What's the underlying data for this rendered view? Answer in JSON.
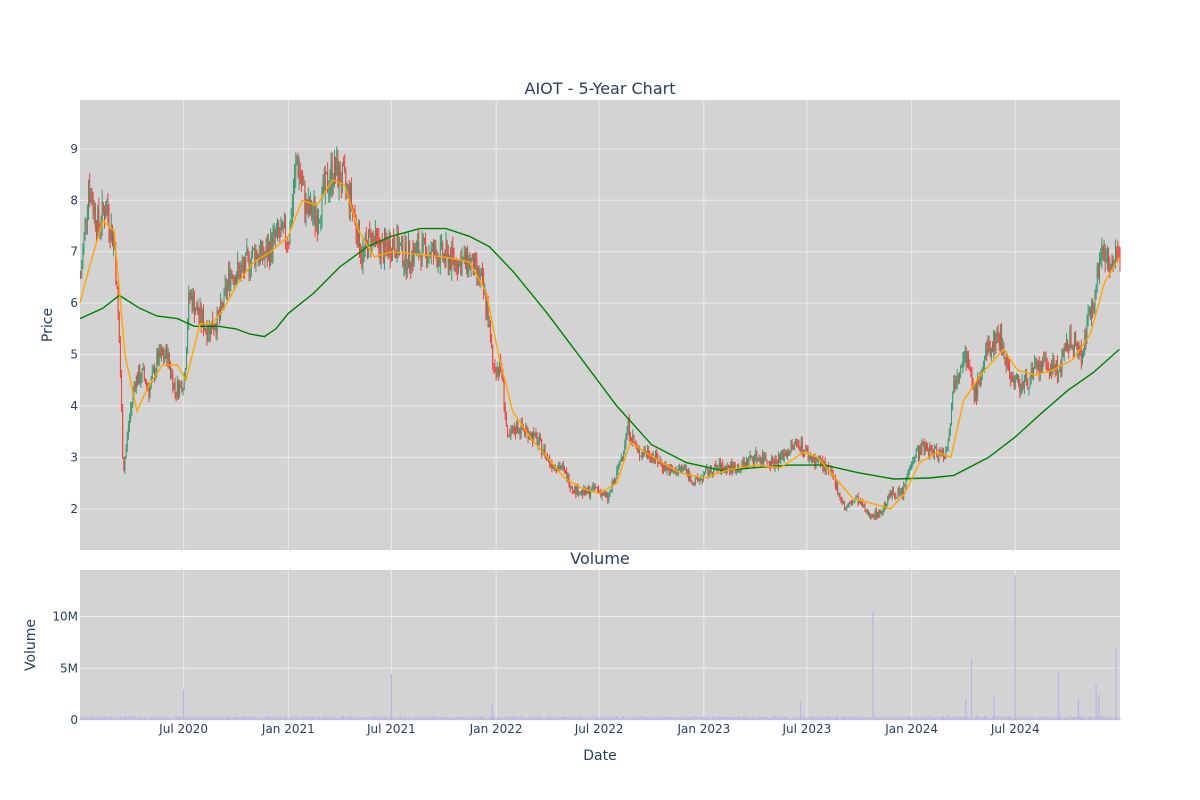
{
  "chart_data": {
    "type": "candlestick",
    "title": "AIOT - 5-Year Chart",
    "colors": {
      "plot_bg": "#d3d3d3",
      "grid": "#ebebeb",
      "increasing": "#3d9970",
      "decreasing": "#e8453c",
      "ma_short": "#ffa500",
      "ma_long": "#008000",
      "volume": "#b9b4e6"
    },
    "x_range": [
      "2020-01-01",
      "2025-01-01"
    ],
    "x_ticks": [
      {
        "date": "2020-07-01",
        "label": "Jul 2020"
      },
      {
        "date": "2021-01-01",
        "label": "Jan 2021"
      },
      {
        "date": "2021-07-01",
        "label": "Jul 2021"
      },
      {
        "date": "2022-01-01",
        "label": "Jan 2022"
      },
      {
        "date": "2022-07-01",
        "label": "Jul 2022"
      },
      {
        "date": "2023-01-01",
        "label": "Jan 2023"
      },
      {
        "date": "2023-07-01",
        "label": "Jul 2023"
      },
      {
        "date": "2024-01-01",
        "label": "Jan 2024"
      },
      {
        "date": "2024-07-01",
        "label": "Jul 2024"
      }
    ],
    "price_panel": {
      "ylabel": "Price",
      "ylim": [
        1.2,
        9.95
      ],
      "yticks": [
        2,
        3,
        4,
        5,
        6,
        7,
        8,
        9
      ],
      "closes": [
        {
          "d": "2020-01-01",
          "v": 6.5
        },
        {
          "d": "2020-01-15",
          "v": 8.3
        },
        {
          "d": "2020-02-01",
          "v": 7.5
        },
        {
          "d": "2020-02-15",
          "v": 7.9
        },
        {
          "d": "2020-03-01",
          "v": 7.1
        },
        {
          "d": "2020-03-10",
          "v": 5.0
        },
        {
          "d": "2020-03-16",
          "v": 2.7
        },
        {
          "d": "2020-03-25",
          "v": 3.6
        },
        {
          "d": "2020-04-05",
          "v": 4.5
        },
        {
          "d": "2020-04-20",
          "v": 4.6
        },
        {
          "d": "2020-05-01",
          "v": 4.3
        },
        {
          "d": "2020-05-15",
          "v": 4.9
        },
        {
          "d": "2020-06-01",
          "v": 5.0
        },
        {
          "d": "2020-06-15",
          "v": 4.3
        },
        {
          "d": "2020-07-01",
          "v": 4.5
        },
        {
          "d": "2020-07-10",
          "v": 6.2
        },
        {
          "d": "2020-07-25",
          "v": 5.8
        },
        {
          "d": "2020-08-10",
          "v": 5.5
        },
        {
          "d": "2020-09-01",
          "v": 5.7
        },
        {
          "d": "2020-09-20",
          "v": 6.6
        },
        {
          "d": "2020-10-10",
          "v": 6.6
        },
        {
          "d": "2020-11-01",
          "v": 7.0
        },
        {
          "d": "2020-11-20",
          "v": 6.9
        },
        {
          "d": "2020-12-10",
          "v": 7.3
        },
        {
          "d": "2021-01-01",
          "v": 7.3
        },
        {
          "d": "2021-01-15",
          "v": 8.8
        },
        {
          "d": "2021-02-01",
          "v": 7.8
        },
        {
          "d": "2021-02-20",
          "v": 7.7
        },
        {
          "d": "2021-03-05",
          "v": 8.2
        },
        {
          "d": "2021-03-20",
          "v": 8.6
        },
        {
          "d": "2021-04-05",
          "v": 8.4
        },
        {
          "d": "2021-04-20",
          "v": 8.0
        },
        {
          "d": "2021-05-10",
          "v": 6.9
        },
        {
          "d": "2021-05-25",
          "v": 7.3
        },
        {
          "d": "2021-06-15",
          "v": 7.0
        },
        {
          "d": "2021-07-05",
          "v": 7.2
        },
        {
          "d": "2021-07-25",
          "v": 6.9
        },
        {
          "d": "2021-08-15",
          "v": 7.0
        },
        {
          "d": "2021-09-05",
          "v": 7.0
        },
        {
          "d": "2021-10-01",
          "v": 6.9
        },
        {
          "d": "2021-10-25",
          "v": 6.8
        },
        {
          "d": "2021-11-15",
          "v": 6.8
        },
        {
          "d": "2021-12-05",
          "v": 6.4
        },
        {
          "d": "2021-12-15",
          "v": 5.9
        },
        {
          "d": "2021-12-25",
          "v": 4.8
        },
        {
          "d": "2022-01-10",
          "v": 4.7
        },
        {
          "d": "2022-01-20",
          "v": 3.3
        },
        {
          "d": "2022-02-05",
          "v": 3.6
        },
        {
          "d": "2022-02-25",
          "v": 3.5
        },
        {
          "d": "2022-03-15",
          "v": 3.3
        },
        {
          "d": "2022-04-05",
          "v": 2.9
        },
        {
          "d": "2022-04-25",
          "v": 2.8
        },
        {
          "d": "2022-05-15",
          "v": 2.4
        },
        {
          "d": "2022-06-05",
          "v": 2.3
        },
        {
          "d": "2022-06-25",
          "v": 2.4
        },
        {
          "d": "2022-07-15",
          "v": 2.2
        },
        {
          "d": "2022-08-01",
          "v": 2.7
        },
        {
          "d": "2022-08-20",
          "v": 3.6
        },
        {
          "d": "2022-09-05",
          "v": 3.1
        },
        {
          "d": "2022-09-25",
          "v": 3.1
        },
        {
          "d": "2022-10-15",
          "v": 2.9
        },
        {
          "d": "2022-11-05",
          "v": 2.7
        },
        {
          "d": "2022-11-25",
          "v": 2.8
        },
        {
          "d": "2022-12-15",
          "v": 2.5
        },
        {
          "d": "2023-01-05",
          "v": 2.7
        },
        {
          "d": "2023-01-25",
          "v": 2.8
        },
        {
          "d": "2023-02-15",
          "v": 2.8
        },
        {
          "d": "2023-03-05",
          "v": 2.8
        },
        {
          "d": "2023-03-25",
          "v": 3.0
        },
        {
          "d": "2023-04-15",
          "v": 3.0
        },
        {
          "d": "2023-05-05",
          "v": 2.9
        },
        {
          "d": "2023-05-25",
          "v": 3.1
        },
        {
          "d": "2023-06-15",
          "v": 3.3
        },
        {
          "d": "2023-07-05",
          "v": 3.0
        },
        {
          "d": "2023-07-25",
          "v": 2.9
        },
        {
          "d": "2023-08-15",
          "v": 2.6
        },
        {
          "d": "2023-09-05",
          "v": 2.0
        },
        {
          "d": "2023-09-25",
          "v": 2.2
        },
        {
          "d": "2023-10-15",
          "v": 1.9
        },
        {
          "d": "2023-11-05",
          "v": 1.9
        },
        {
          "d": "2023-11-25",
          "v": 2.3
        },
        {
          "d": "2023-12-15",
          "v": 2.3
        },
        {
          "d": "2024-01-01",
          "v": 3.0
        },
        {
          "d": "2024-01-20",
          "v": 3.2
        },
        {
          "d": "2024-02-10",
          "v": 3.1
        },
        {
          "d": "2024-03-01",
          "v": 3.1
        },
        {
          "d": "2024-03-15",
          "v": 4.5
        },
        {
          "d": "2024-04-01",
          "v": 5.1
        },
        {
          "d": "2024-04-20",
          "v": 4.2
        },
        {
          "d": "2024-05-10",
          "v": 5.0
        },
        {
          "d": "2024-06-01",
          "v": 5.4
        },
        {
          "d": "2024-06-25",
          "v": 4.5
        },
        {
          "d": "2024-07-15",
          "v": 4.4
        },
        {
          "d": "2024-08-05",
          "v": 4.7
        },
        {
          "d": "2024-08-25",
          "v": 4.8
        },
        {
          "d": "2024-09-15",
          "v": 4.7
        },
        {
          "d": "2024-10-05",
          "v": 5.3
        },
        {
          "d": "2024-10-25",
          "v": 5.0
        },
        {
          "d": "2024-11-15",
          "v": 6.2
        },
        {
          "d": "2024-12-01",
          "v": 7.1
        },
        {
          "d": "2024-12-15",
          "v": 6.8
        },
        {
          "d": "2024-12-31",
          "v": 6.8
        }
      ],
      "ma_short": [
        {
          "d": "2020-01-01",
          "v": 6.0
        },
        {
          "d": "2020-01-20",
          "v": 6.8
        },
        {
          "d": "2020-02-10",
          "v": 7.6
        },
        {
          "d": "2020-03-01",
          "v": 7.4
        },
        {
          "d": "2020-03-20",
          "v": 5.0
        },
        {
          "d": "2020-04-10",
          "v": 3.9
        },
        {
          "d": "2020-05-01",
          "v": 4.4
        },
        {
          "d": "2020-05-25",
          "v": 4.8
        },
        {
          "d": "2020-06-20",
          "v": 4.8
        },
        {
          "d": "2020-07-05",
          "v": 4.5
        },
        {
          "d": "2020-07-30",
          "v": 5.6
        },
        {
          "d": "2020-08-20",
          "v": 5.6
        },
        {
          "d": "2020-09-10",
          "v": 5.9
        },
        {
          "d": "2020-10-05",
          "v": 6.4
        },
        {
          "d": "2020-11-01",
          "v": 6.8
        },
        {
          "d": "2020-12-01",
          "v": 7.0
        },
        {
          "d": "2021-01-01",
          "v": 7.3
        },
        {
          "d": "2021-01-25",
          "v": 8.0
        },
        {
          "d": "2021-02-20",
          "v": 7.9
        },
        {
          "d": "2021-03-20",
          "v": 8.4
        },
        {
          "d": "2021-04-10",
          "v": 8.3
        },
        {
          "d": "2021-05-05",
          "v": 7.4
        },
        {
          "d": "2021-06-01",
          "v": 6.9
        },
        {
          "d": "2021-07-01",
          "v": 7.0
        },
        {
          "d": "2021-08-15",
          "v": 6.95
        },
        {
          "d": "2021-10-01",
          "v": 6.9
        },
        {
          "d": "2021-11-15",
          "v": 6.8
        },
        {
          "d": "2021-12-15",
          "v": 6.2
        },
        {
          "d": "2022-01-05",
          "v": 5.0
        },
        {
          "d": "2022-01-30",
          "v": 3.9
        },
        {
          "d": "2022-03-01",
          "v": 3.4
        },
        {
          "d": "2022-04-01",
          "v": 3.0
        },
        {
          "d": "2022-05-01",
          "v": 2.6
        },
        {
          "d": "2022-06-01",
          "v": 2.4
        },
        {
          "d": "2022-07-01",
          "v": 2.3
        },
        {
          "d": "2022-08-01",
          "v": 2.5
        },
        {
          "d": "2022-08-25",
          "v": 3.3
        },
        {
          "d": "2022-09-20",
          "v": 3.1
        },
        {
          "d": "2022-10-20",
          "v": 2.9
        },
        {
          "d": "2022-11-20",
          "v": 2.7
        },
        {
          "d": "2023-01-01",
          "v": 2.6
        },
        {
          "d": "2023-02-10",
          "v": 2.75
        },
        {
          "d": "2023-04-01",
          "v": 2.85
        },
        {
          "d": "2023-05-15",
          "v": 2.8
        },
        {
          "d": "2023-06-25",
          "v": 3.1
        },
        {
          "d": "2023-07-20",
          "v": 3.0
        },
        {
          "d": "2023-08-20",
          "v": 2.6
        },
        {
          "d": "2023-09-20",
          "v": 2.2
        },
        {
          "d": "2023-10-25",
          "v": 2.1
        },
        {
          "d": "2023-11-25",
          "v": 2.0
        },
        {
          "d": "2023-12-20",
          "v": 2.3
        },
        {
          "d": "2024-01-15",
          "v": 2.9
        },
        {
          "d": "2024-02-15",
          "v": 3.1
        },
        {
          "d": "2024-03-10",
          "v": 3.0
        },
        {
          "d": "2024-04-01",
          "v": 4.1
        },
        {
          "d": "2024-05-01",
          "v": 4.6
        },
        {
          "d": "2024-06-10",
          "v": 5.1
        },
        {
          "d": "2024-07-05",
          "v": 4.7
        },
        {
          "d": "2024-08-05",
          "v": 4.6
        },
        {
          "d": "2024-09-05",
          "v": 4.7
        },
        {
          "d": "2024-10-10",
          "v": 4.9
        },
        {
          "d": "2024-11-10",
          "v": 5.4
        },
        {
          "d": "2024-12-05",
          "v": 6.4
        },
        {
          "d": "2024-12-31",
          "v": 6.9
        }
      ],
      "ma_long": [
        {
          "d": "2020-01-01",
          "v": 5.7
        },
        {
          "d": "2020-02-10",
          "v": 5.9
        },
        {
          "d": "2020-03-10",
          "v": 6.15
        },
        {
          "d": "2020-04-15",
          "v": 5.9
        },
        {
          "d": "2020-05-15",
          "v": 5.75
        },
        {
          "d": "2020-06-20",
          "v": 5.7
        },
        {
          "d": "2020-07-20",
          "v": 5.55
        },
        {
          "d": "2020-09-01",
          "v": 5.55
        },
        {
          "d": "2020-10-01",
          "v": 5.5
        },
        {
          "d": "2020-10-25",
          "v": 5.4
        },
        {
          "d": "2020-11-20",
          "v": 5.35
        },
        {
          "d": "2020-12-10",
          "v": 5.5
        },
        {
          "d": "2021-01-01",
          "v": 5.8
        },
        {
          "d": "2021-02-15",
          "v": 6.2
        },
        {
          "d": "2021-04-01",
          "v": 6.7
        },
        {
          "d": "2021-05-20",
          "v": 7.1
        },
        {
          "d": "2021-07-01",
          "v": 7.3
        },
        {
          "d": "2021-08-20",
          "v": 7.45
        },
        {
          "d": "2021-10-05",
          "v": 7.45
        },
        {
          "d": "2021-11-15",
          "v": 7.3
        },
        {
          "d": "2021-12-20",
          "v": 7.1
        },
        {
          "d": "2022-02-01",
          "v": 6.6
        },
        {
          "d": "2022-04-01",
          "v": 5.8
        },
        {
          "d": "2022-06-01",
          "v": 4.9
        },
        {
          "d": "2022-08-01",
          "v": 4.0
        },
        {
          "d": "2022-10-01",
          "v": 3.25
        },
        {
          "d": "2022-12-01",
          "v": 2.9
        },
        {
          "d": "2023-02-01",
          "v": 2.75
        },
        {
          "d": "2023-04-01",
          "v": 2.8
        },
        {
          "d": "2023-06-01",
          "v": 2.85
        },
        {
          "d": "2023-08-01",
          "v": 2.85
        },
        {
          "d": "2023-10-01",
          "v": 2.7
        },
        {
          "d": "2023-12-01",
          "v": 2.58
        },
        {
          "d": "2024-02-01",
          "v": 2.6
        },
        {
          "d": "2024-03-15",
          "v": 2.65
        },
        {
          "d": "2024-05-15",
          "v": 3.0
        },
        {
          "d": "2024-07-01",
          "v": 3.4
        },
        {
          "d": "2024-08-15",
          "v": 3.85
        },
        {
          "d": "2024-10-01",
          "v": 4.3
        },
        {
          "d": "2024-11-15",
          "v": 4.65
        },
        {
          "d": "2024-12-31",
          "v": 5.1
        }
      ]
    },
    "volume_panel": {
      "title": "Volume",
      "ylabel": "Volume",
      "xlabel": "Date",
      "ylim": [
        0,
        14500000
      ],
      "yticks": [
        {
          "v": 0,
          "label": "0"
        },
        {
          "v": 5000000,
          "label": "5M"
        },
        {
          "v": 10000000,
          "label": "10M"
        }
      ],
      "spikes": [
        {
          "d": "2020-07-01",
          "v": 3000000
        },
        {
          "d": "2021-07-01",
          "v": 4500000
        },
        {
          "d": "2021-12-25",
          "v": 1500000
        },
        {
          "d": "2023-06-20",
          "v": 1800000
        },
        {
          "d": "2023-10-25",
          "v": 10500000
        },
        {
          "d": "2024-04-05",
          "v": 2000000
        },
        {
          "d": "2024-04-15",
          "v": 6000000
        },
        {
          "d": "2024-05-25",
          "v": 2200000
        },
        {
          "d": "2024-07-01",
          "v": 14000000
        },
        {
          "d": "2024-09-15",
          "v": 4800000
        },
        {
          "d": "2024-10-20",
          "v": 2000000
        },
        {
          "d": "2024-11-20",
          "v": 3500000
        },
        {
          "d": "2024-11-25",
          "v": 2500000
        },
        {
          "d": "2024-12-25",
          "v": 7000000
        }
      ]
    }
  }
}
